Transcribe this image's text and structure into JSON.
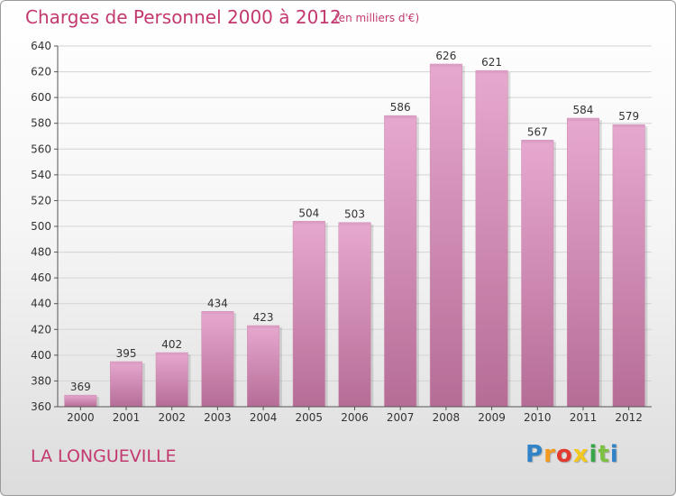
{
  "header": {
    "title": "Charges de Personnel 2000 à 2012",
    "subtitle": "(en milliers d'€)"
  },
  "footer": {
    "commune": "LA LONGUEVILLE",
    "logo_letters": [
      "P",
      "r",
      "o",
      "x",
      "i",
      "t",
      "i"
    ],
    "logo_colors": [
      "#2f83c6",
      "#f39a1e",
      "#e23a2f",
      "#f2c81e",
      "#3aa64a",
      "#7cc142",
      "#2f83c6"
    ]
  },
  "colors": {
    "bar_top": "#e7a8cf",
    "bar_bottom": "#b56d96",
    "bar_face": "#dc9cc4",
    "text": "#c2386f",
    "grid": "#d4d4d4",
    "axis": "#555555"
  },
  "chart_data": {
    "type": "bar",
    "categories": [
      "2000",
      "2001",
      "2002",
      "2003",
      "2004",
      "2005",
      "2006",
      "2007",
      "2008",
      "2009",
      "2010",
      "2011",
      "2012"
    ],
    "values": [
      369,
      395,
      402,
      434,
      423,
      504,
      503,
      586,
      626,
      621,
      567,
      584,
      579
    ],
    "ylim": [
      360,
      640
    ],
    "yticks": [
      360,
      380,
      400,
      420,
      440,
      460,
      480,
      500,
      520,
      540,
      560,
      580,
      600,
      620,
      640
    ],
    "grid": true,
    "data_labels": true
  }
}
